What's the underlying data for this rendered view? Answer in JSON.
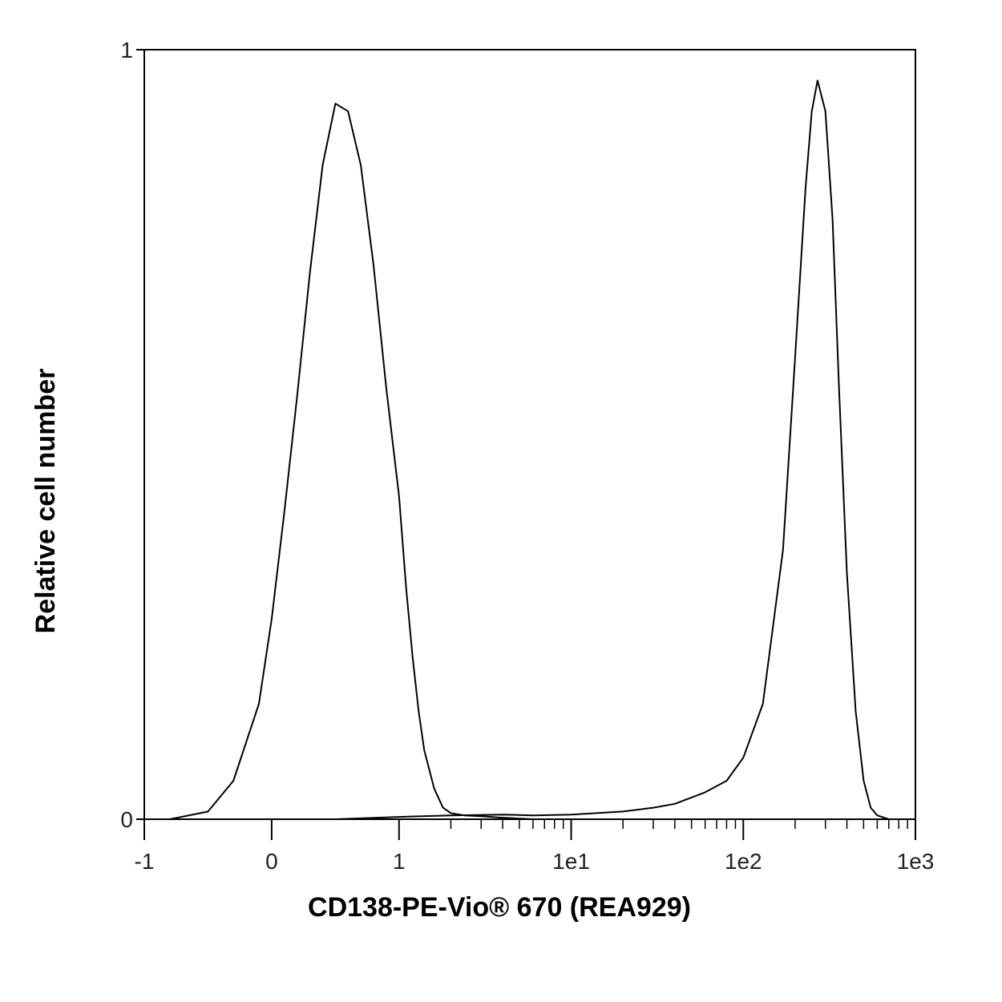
{
  "chart_data": {
    "type": "line",
    "title": "",
    "xlabel": "CD138-PE-Vio® 670 (REA929)",
    "ylabel": "Relative cell number",
    "x_scale": "biexponential",
    "xlim": [
      -1,
      1000
    ],
    "ylim": [
      0,
      1
    ],
    "x_ticks": [
      -1,
      0,
      1,
      10,
      100,
      1000
    ],
    "x_tick_labels": [
      "-1",
      "0",
      "1",
      "1e1",
      "1e2",
      "1e3"
    ],
    "y_ticks": [
      0,
      1
    ],
    "y_tick_labels": [
      "0",
      "1"
    ],
    "grid": false,
    "legend": "none",
    "line_color": "#000000",
    "series": [
      {
        "x": [
          -0.8,
          -0.5,
          -0.3,
          -0.1,
          0.0,
          0.1,
          0.2,
          0.3,
          0.4,
          0.5,
          0.6,
          0.7,
          0.8,
          0.9,
          1.0,
          1.1,
          1.2,
          1.3,
          1.4,
          1.6,
          1.8,
          2.0,
          2.4,
          3.0,
          4.0,
          6.0
        ],
        "y": [
          0.0,
          0.01,
          0.05,
          0.15,
          0.26,
          0.4,
          0.55,
          0.71,
          0.85,
          0.93,
          0.92,
          0.85,
          0.72,
          0.56,
          0.42,
          0.3,
          0.21,
          0.14,
          0.09,
          0.04,
          0.015,
          0.008,
          0.005,
          0.004,
          0.002,
          0.0
        ]
      },
      {
        "x": [
          0.5,
          1,
          2,
          4,
          6,
          10,
          20,
          30,
          40,
          60,
          80,
          100,
          130,
          170,
          200,
          230,
          250,
          270,
          300,
          330,
          360,
          400,
          450,
          500,
          550,
          600,
          700
        ],
        "y": [
          0.0,
          0.003,
          0.005,
          0.006,
          0.005,
          0.006,
          0.01,
          0.015,
          0.02,
          0.035,
          0.05,
          0.08,
          0.15,
          0.35,
          0.6,
          0.82,
          0.92,
          0.96,
          0.92,
          0.78,
          0.56,
          0.32,
          0.14,
          0.05,
          0.015,
          0.005,
          0.0
        ]
      }
    ]
  }
}
